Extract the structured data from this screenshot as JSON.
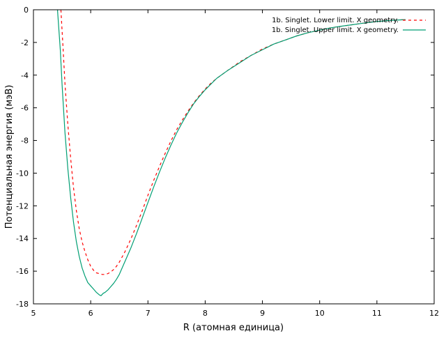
{
  "chart_data": {
    "type": "line",
    "title": "",
    "xlabel": "R (атомная единица)",
    "ylabel": "Потенциальная энергия (мэВ)",
    "xlim": [
      5,
      12
    ],
    "ylim": [
      -18,
      0
    ],
    "xticks": [
      5,
      6,
      7,
      8,
      9,
      10,
      11,
      12
    ],
    "yticks": [
      0,
      -2,
      -4,
      -6,
      -8,
      -10,
      -12,
      -14,
      -16,
      -18
    ],
    "grid": false,
    "legend_position": "top-right",
    "series": [
      {
        "name": "1b. Singlet. Lower limit. X geometry.",
        "color": "#ff0000",
        "style": "dashed",
        "x": [
          5.48,
          5.52,
          5.55,
          5.6,
          5.65,
          5.7,
          5.75,
          5.8,
          5.85,
          5.9,
          5.95,
          6.0,
          6.05,
          6.1,
          6.15,
          6.2,
          6.25,
          6.3,
          6.35,
          6.4,
          6.45,
          6.5,
          6.6,
          6.7,
          6.8,
          6.9,
          7.0,
          7.1,
          7.2,
          7.3,
          7.4,
          7.5,
          7.6,
          7.7,
          7.8,
          7.9,
          8.0,
          8.1,
          8.2,
          8.4,
          8.6,
          8.8,
          9.0,
          9.2,
          9.4,
          9.6,
          9.8,
          10.0,
          10.2,
          10.4,
          10.6,
          10.8,
          11.0,
          11.2,
          11.5
        ],
        "y": [
          0,
          -2.5,
          -4.5,
          -7.0,
          -9.1,
          -10.9,
          -12.3,
          -13.4,
          -14.2,
          -14.8,
          -15.3,
          -15.7,
          -15.95,
          -16.1,
          -16.15,
          -16.2,
          -16.2,
          -16.15,
          -16.05,
          -15.9,
          -15.7,
          -15.45,
          -14.8,
          -14.05,
          -13.2,
          -12.3,
          -11.35,
          -10.45,
          -9.6,
          -8.8,
          -8.05,
          -7.35,
          -6.75,
          -6.2,
          -5.7,
          -5.25,
          -4.85,
          -4.5,
          -4.2,
          -3.7,
          -3.2,
          -2.8,
          -2.4,
          -2.1,
          -1.85,
          -1.6,
          -1.4,
          -1.25,
          -1.1,
          -1.0,
          -0.9,
          -0.8,
          -0.72,
          -0.66,
          -0.6
        ]
      },
      {
        "name": "1b. Singlet. Upper limit. X geometry.",
        "color": "#009e73",
        "style": "solid",
        "x": [
          5.42,
          5.47,
          5.5,
          5.55,
          5.6,
          5.65,
          5.7,
          5.75,
          5.8,
          5.85,
          5.9,
          5.95,
          6.0,
          6.05,
          6.1,
          6.15,
          6.18,
          6.22,
          6.25,
          6.3,
          6.35,
          6.4,
          6.45,
          6.5,
          6.6,
          6.7,
          6.8,
          6.9,
          7.0,
          7.1,
          7.2,
          7.3,
          7.4,
          7.5,
          7.6,
          7.7,
          7.8,
          7.9,
          8.0,
          8.1,
          8.2,
          8.4,
          8.6,
          8.8,
          9.0,
          9.2,
          9.4,
          9.6,
          9.8,
          10.0,
          10.2,
          10.4,
          10.6,
          10.8,
          11.0,
          11.2,
          11.5
        ],
        "y": [
          0,
          -2.5,
          -4.6,
          -7.5,
          -9.7,
          -11.5,
          -13.0,
          -14.2,
          -15.1,
          -15.8,
          -16.3,
          -16.7,
          -16.9,
          -17.1,
          -17.3,
          -17.45,
          -17.5,
          -17.35,
          -17.3,
          -17.15,
          -16.95,
          -16.75,
          -16.5,
          -16.2,
          -15.4,
          -14.6,
          -13.7,
          -12.75,
          -11.8,
          -10.85,
          -9.95,
          -9.1,
          -8.3,
          -7.55,
          -6.9,
          -6.3,
          -5.75,
          -5.3,
          -4.9,
          -4.55,
          -4.2,
          -3.7,
          -3.25,
          -2.8,
          -2.45,
          -2.1,
          -1.85,
          -1.6,
          -1.4,
          -1.25,
          -1.1,
          -1.0,
          -0.9,
          -0.8,
          -0.72,
          -0.66,
          -0.6
        ]
      }
    ]
  }
}
